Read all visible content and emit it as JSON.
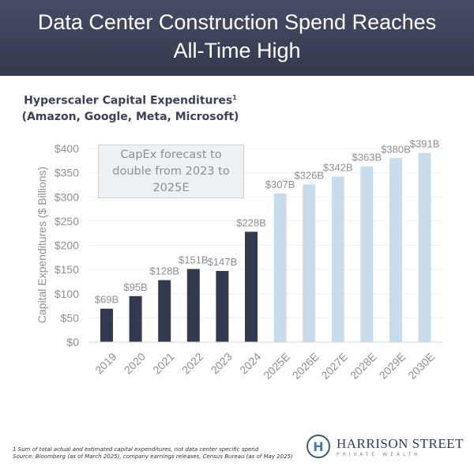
{
  "header": {
    "title_line1": "Data Center Construction Spend Reaches",
    "title_line2": "All-Time High"
  },
  "chart_data": {
    "type": "bar",
    "title": "Hyperscaler Capital Expenditures",
    "title_sup": "1",
    "subtitle": "(Amazon, Google, Meta, Microsoft)",
    "ylabel": "Capital Expenditures ($ Billions)",
    "xlabel": "",
    "ylim": [
      0,
      400
    ],
    "yticks": [
      "$0",
      "$50",
      "$100",
      "$150",
      "$200",
      "$250",
      "$300",
      "$350",
      "$400"
    ],
    "grid": true,
    "categories": [
      "2019",
      "2020",
      "2021",
      "2022",
      "2023",
      "2024",
      "2025E",
      "2026E",
      "2027E",
      "2028E",
      "2029E",
      "2030E"
    ],
    "values": [
      69,
      95,
      128,
      151,
      147,
      228,
      307,
      326,
      342,
      363,
      380,
      391
    ],
    "labels": [
      "$69B",
      "$95B",
      "$128B",
      "$151B",
      "$147B",
      "$228B",
      "$307B",
      "$326B",
      "$342B",
      "$363B",
      "$380B",
      "$391B"
    ],
    "colors": {
      "actual": "#333a50",
      "estimate": "#c9dceb"
    },
    "annotation": [
      "CapEx forecast to",
      "double from 2023 to",
      "2025E"
    ]
  },
  "footnote": {
    "line1": "1 Sum of total actual and estimated capital expenditures, not data center specific spend",
    "line2": "Source: Bloomberg (as of March 2025), company earnings releases, Census Bureau (as of May 2025)"
  },
  "logo": {
    "name": "HARRISON STREET",
    "tagline": "PRIVATE WEALTH"
  }
}
